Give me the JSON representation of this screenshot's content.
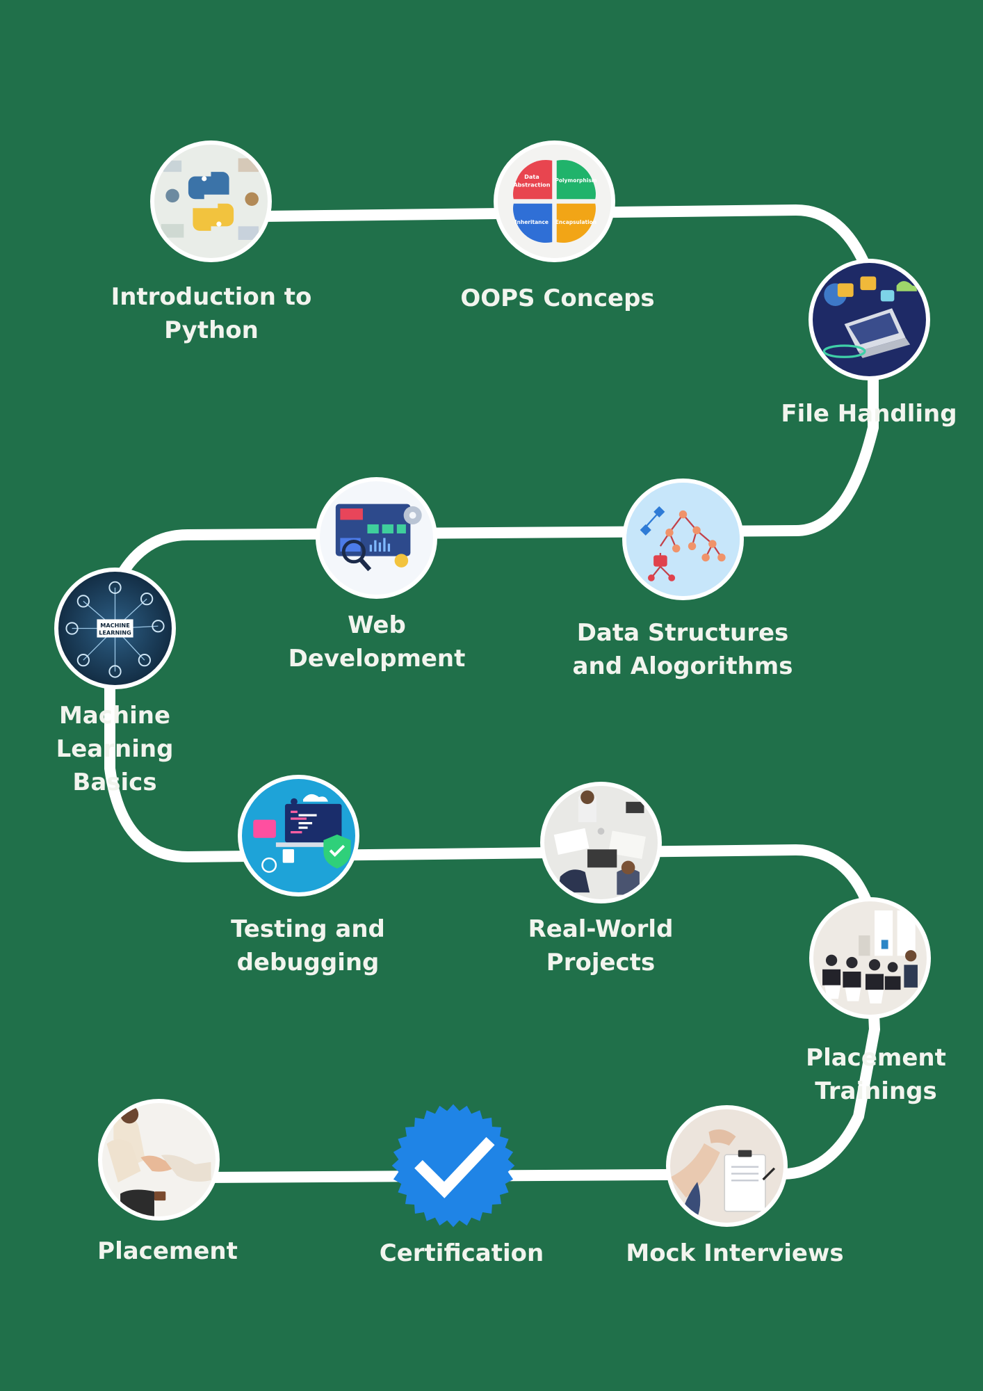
{
  "background_color": "#20704a",
  "path_color": "#ffffff",
  "steps": [
    {
      "label": "Introduction to\nPython",
      "icon": "python-logo-icon"
    },
    {
      "label": "OOPS Conceps",
      "icon": "oops-quadrant-icon",
      "quadrants": [
        "Data Abstraction",
        "Polymorphism",
        "Inheritance",
        "Encapsulation"
      ]
    },
    {
      "label": "File Handling",
      "icon": "laptop-folders-icon"
    },
    {
      "label": "Data Structures\nand Alogorithms",
      "icon": "tree-graph-icon"
    },
    {
      "label": "Web\nDevelopment",
      "icon": "web-dashboard-icon"
    },
    {
      "label": "Machine Learning\nBasics",
      "icon": "machine-learning-network-icon",
      "inner_text": "MACHINE\nLEARNING"
    },
    {
      "label": "Testing  and\ndebugging",
      "icon": "code-testing-icon"
    },
    {
      "label": "Real-World\nProjects",
      "icon": "team-desk-photo-icon"
    },
    {
      "label": "Placement\nTrainings",
      "icon": "training-session-photo-icon"
    },
    {
      "label": "Mock Interviews",
      "icon": "interview-clipboard-photo-icon"
    },
    {
      "label": "Certification",
      "icon": "verified-badge-icon"
    },
    {
      "label": "Placement",
      "icon": "handshake-photo-icon"
    }
  ]
}
